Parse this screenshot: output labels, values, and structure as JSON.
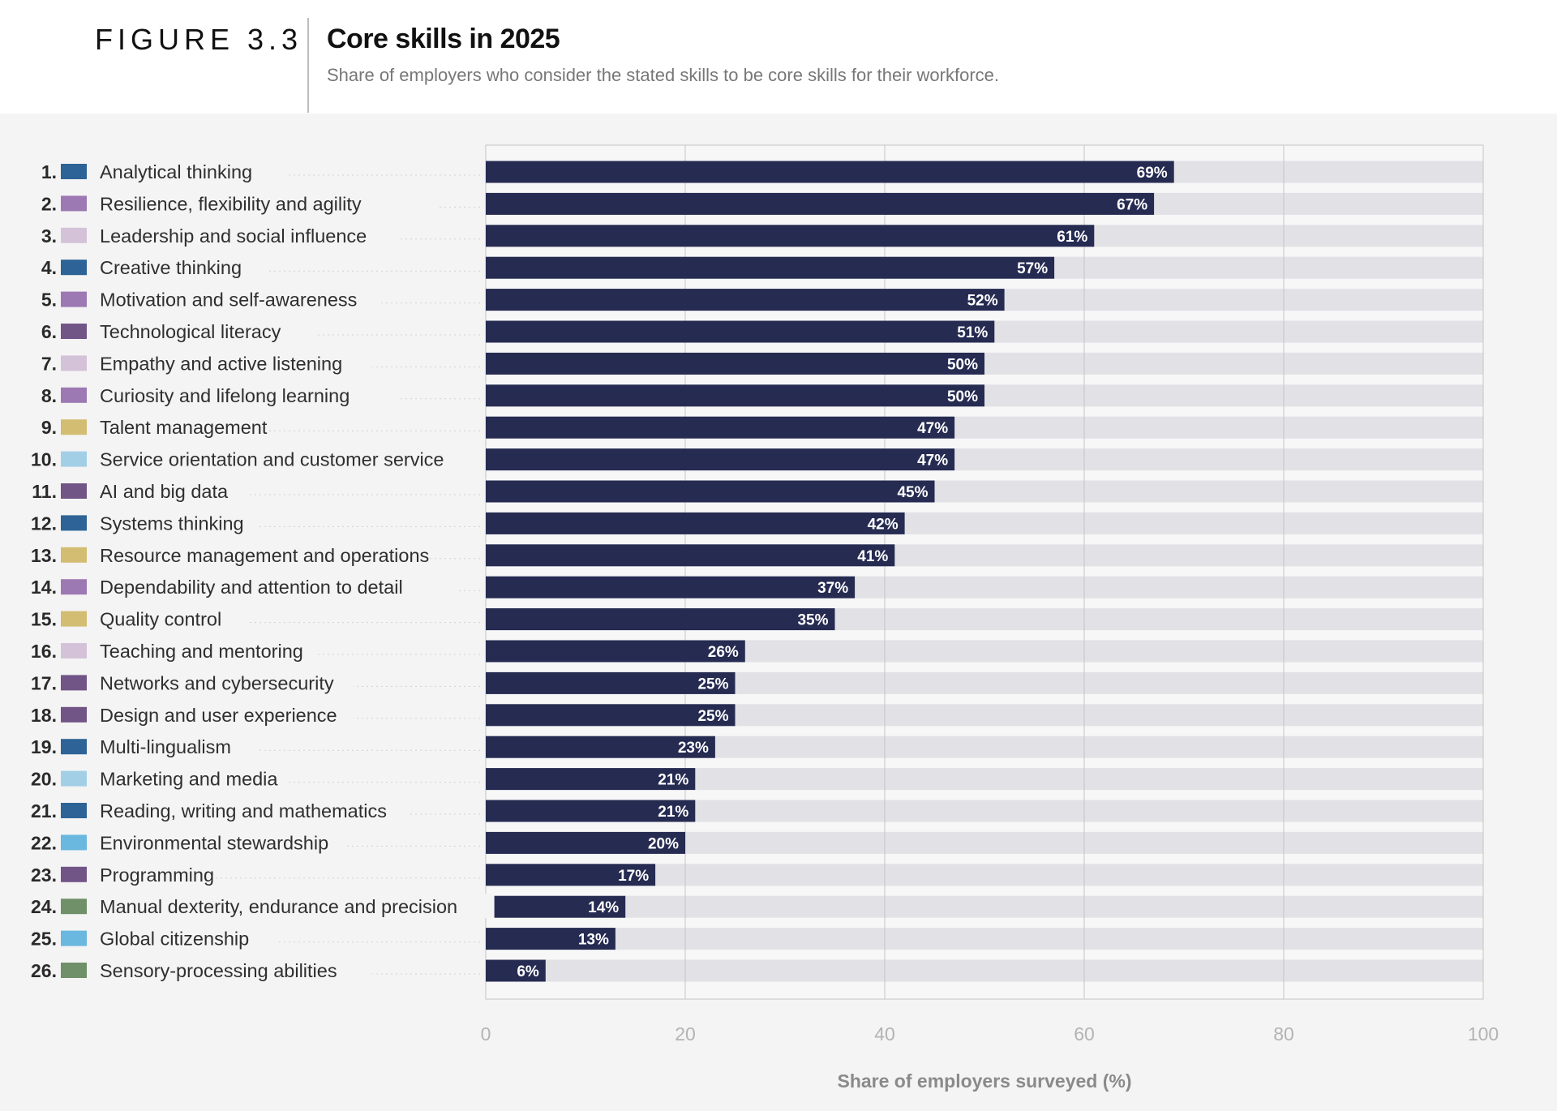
{
  "header": {
    "figure_label": "FIGURE 3.3",
    "title": "Core skills in 2025",
    "subtitle": "Share of employers who consider the stated skills to be core skills for their workforce."
  },
  "chart_data": {
    "type": "bar",
    "orientation": "horizontal",
    "title": "Core skills in 2025",
    "subtitle": "Share of employers who consider the stated skills to be core skills for their workforce.",
    "xlabel": "Share of employers surveyed (%)",
    "ylabel": "",
    "xlim": [
      0,
      100
    ],
    "x_ticks": [
      0,
      20,
      40,
      60,
      80,
      100
    ],
    "grid": true,
    "value_suffix": "%",
    "bar_color": "#262b52",
    "track_color": "#e2e2e6",
    "categories": [
      "Analytical thinking",
      "Resilience, flexibility and agility",
      "Leadership and social influence",
      "Creative thinking",
      "Motivation and self-awareness",
      "Technological literacy",
      "Empathy and active listening",
      "Curiosity and lifelong learning",
      "Talent management",
      "Service orientation and customer service",
      "AI and big data",
      "Systems thinking",
      "Resource management and operations",
      "Dependability and attention to detail",
      "Quality control",
      "Teaching and mentoring",
      "Networks and cybersecurity",
      "Design and user experience",
      "Multi-lingualism",
      "Marketing and media",
      "Reading, writing and mathematics",
      "Environmental stewardship",
      "Programming",
      "Manual dexterity, endurance and precision",
      "Global citizenship",
      "Sensory-processing abilities"
    ],
    "ranks": [
      "1.",
      "2.",
      "3.",
      "4.",
      "5.",
      "6.",
      "7.",
      "8.",
      "9.",
      "10.",
      "11.",
      "12.",
      "13.",
      "14.",
      "15.",
      "16.",
      "17.",
      "18.",
      "19.",
      "20.",
      "21.",
      "22.",
      "23.",
      "24.",
      "25.",
      "26."
    ],
    "values": [
      69,
      67,
      61,
      57,
      52,
      51,
      50,
      50,
      47,
      47,
      45,
      42,
      41,
      37,
      35,
      26,
      25,
      25,
      23,
      21,
      21,
      20,
      17,
      14,
      13,
      6
    ],
    "swatch_colors": [
      "#2d6396",
      "#9d79b3",
      "#d4c3d8",
      "#2d6396",
      "#9d79b3",
      "#725587",
      "#d4c3d8",
      "#9d79b3",
      "#d2bd72",
      "#a3cfe6",
      "#725587",
      "#2d6396",
      "#d2bd72",
      "#9d79b3",
      "#d2bd72",
      "#d4c3d8",
      "#725587",
      "#725587",
      "#2d6396",
      "#a3cfe6",
      "#2d6396",
      "#6ab7df",
      "#725587",
      "#6f9068",
      "#6ab7df",
      "#6f9068"
    ]
  }
}
